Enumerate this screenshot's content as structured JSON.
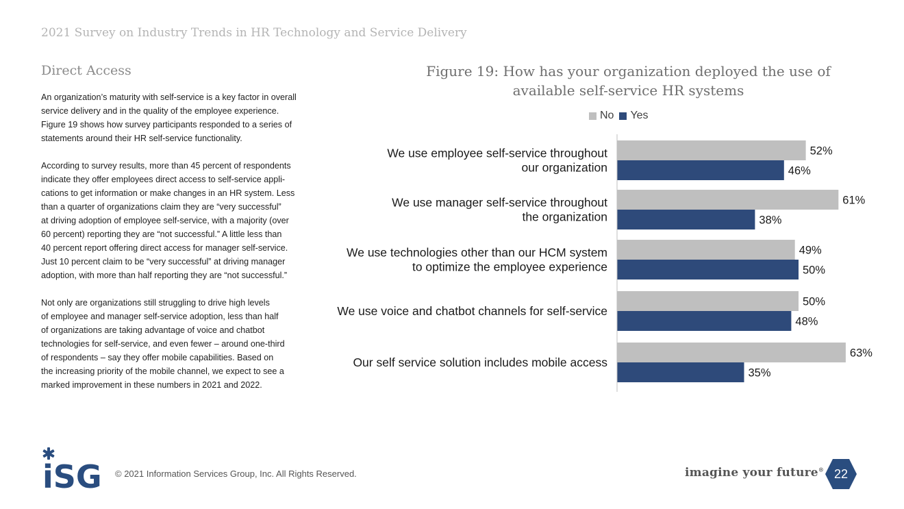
{
  "header": {
    "doc_title": "2021 Survey on Industry Trends in HR Technology and Service Delivery"
  },
  "section": {
    "title": "Direct Access"
  },
  "body_paragraphs": [
    [
      "An organization’s maturity with self-service is a key factor in overall",
      "service delivery and in the quality of the employee experience.",
      "Figure 19 shows how survey participants responded to a series of",
      "statements around their HR self-service functionality."
    ],
    [
      "According to survey results, more than 45 percent of respondents",
      "indicate they offer employees direct access to self-service appli-",
      "cations to get information or make changes in an HR system. Less",
      "than a quarter of organizations claim they are “very successful”",
      "at driving adoption of employee self-service, with a majority (over",
      "60 percent) reporting they are “not successful.” A little less than",
      "40 percent report offering direct access for manager self-service.",
      "Just 10 percent claim to be “very successful” at driving manager",
      "adoption, with more than half reporting they are “not successful.”"
    ],
    [
      "Not only are organizations still struggling to drive high levels",
      "of employee and manager self-service adoption, less than half",
      "of organizations are taking advantage of voice and chatbot",
      "technologies for self-service, and even fewer – around one-third",
      "of respondents – say they offer mobile capabilities. Based on",
      "the increasing priority of the mobile channel, we expect to see a",
      "marked improvement in these numbers in 2021 and 2022."
    ]
  ],
  "figure": {
    "title_lines": [
      "Figure 19: How has your organization deployed the use of",
      "available self-service HR systems"
    ]
  },
  "colors": {
    "no": "#bfbfbf",
    "yes": "#2e4a7a",
    "axis": "#bfbfbf",
    "brand": "#2a4d7f"
  },
  "chart_data": {
    "type": "bar",
    "orientation": "horizontal",
    "title": "Figure 19: How has your organization deployed the use of available self-service HR systems",
    "categories": [
      [
        "We use employee self-service throughout",
        "our organization"
      ],
      [
        "We use manager self-service throughout",
        "the organization"
      ],
      [
        "We use technologies other than our HCM system",
        "to optimize the employee experience"
      ],
      [
        "We use voice and chatbot channels for self-service"
      ],
      [
        "Our self service solution includes mobile access"
      ]
    ],
    "series": [
      {
        "name": "No",
        "values": [
          52,
          61,
          49,
          50,
          63
        ],
        "labels": [
          "52%",
          "61%",
          "49%",
          "50%",
          "63%"
        ]
      },
      {
        "name": "Yes",
        "values": [
          46,
          38,
          50,
          48,
          35
        ],
        "labels": [
          "46%",
          "38%",
          "50%",
          "48%",
          "35%"
        ]
      }
    ],
    "xlim": [
      0,
      100
    ],
    "legend_position": "top",
    "grid": false
  },
  "footer": {
    "logo_text": "iSG",
    "copyright": "© 2021 Information Services Group, Inc. All Rights Reserved.",
    "tagline": "imagine your future",
    "page_number": "22"
  }
}
